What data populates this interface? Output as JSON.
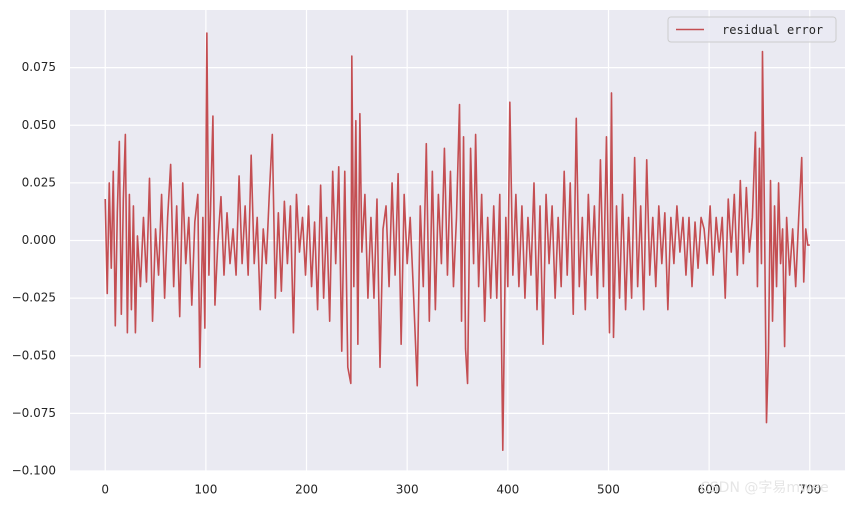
{
  "chart_data": {
    "type": "line",
    "legend": "upper right",
    "grid": true,
    "xlim": [
      -35,
      735
    ],
    "ylim": [
      -0.1,
      0.1
    ],
    "xticks": [
      0,
      100,
      200,
      300,
      400,
      500,
      600,
      700
    ],
    "yticks": [
      {
        "value": -0.1,
        "label": "−0.100"
      },
      {
        "value": -0.075,
        "label": "−0.075"
      },
      {
        "value": -0.05,
        "label": "−0.050"
      },
      {
        "value": -0.025,
        "label": "−0.025"
      },
      {
        "value": 0,
        "label": "0.000"
      },
      {
        "value": 0.025,
        "label": "0.025"
      },
      {
        "value": 0.05,
        "label": "0.050"
      },
      {
        "value": 0.075,
        "label": "0.075"
      }
    ],
    "annotation": "CSDN @字易mwee",
    "x": [
      0,
      2,
      4,
      6,
      8,
      10,
      12,
      14,
      16,
      18,
      20,
      22,
      24,
      26,
      28,
      30,
      32,
      35,
      38,
      41,
      44,
      47,
      50,
      53,
      56,
      59,
      62,
      65,
      68,
      71,
      74,
      77,
      80,
      83,
      86,
      89,
      92,
      94,
      97,
      99,
      101,
      103,
      105,
      107,
      109,
      112,
      115,
      118,
      121,
      124,
      127,
      130,
      133,
      136,
      139,
      142,
      145,
      148,
      151,
      154,
      157,
      160,
      163,
      166,
      169,
      172,
      175,
      178,
      181,
      184,
      187,
      190,
      193,
      196,
      199,
      202,
      205,
      208,
      211,
      214,
      217,
      220,
      223,
      226,
      229,
      232,
      235,
      238,
      241,
      244,
      245,
      247,
      249,
      251,
      253,
      255,
      258,
      261,
      264,
      267,
      270,
      273,
      276,
      279,
      282,
      285,
      288,
      291,
      294,
      297,
      300,
      303,
      306,
      310,
      313,
      316,
      319,
      322,
      325,
      328,
      331,
      334,
      337,
      340,
      343,
      346,
      349,
      352,
      354,
      356,
      358,
      360,
      363,
      366,
      368,
      371,
      374,
      377,
      380,
      383,
      386,
      389,
      392,
      395,
      398,
      400,
      402,
      405,
      408,
      411,
      414,
      417,
      420,
      423,
      426,
      429,
      432,
      435,
      438,
      441,
      444,
      447,
      450,
      453,
      456,
      459,
      462,
      465,
      468,
      471,
      474,
      477,
      480,
      483,
      486,
      489,
      492,
      495,
      498,
      501,
      503,
      505,
      508,
      511,
      514,
      517,
      520,
      523,
      526,
      529,
      532,
      535,
      538,
      541,
      544,
      547,
      550,
      553,
      556,
      559,
      562,
      565,
      568,
      571,
      574,
      577,
      580,
      583,
      586,
      589,
      592,
      595,
      598,
      601,
      604,
      607,
      610,
      613,
      616,
      619,
      622,
      625,
      628,
      631,
      634,
      637,
      640,
      643,
      646,
      648,
      650,
      652,
      653,
      655,
      657,
      659,
      661,
      663,
      665,
      667,
      669,
      671,
      673,
      675,
      677,
      680,
      683,
      686,
      689,
      692,
      694,
      696,
      698,
      700
    ],
    "series": [
      {
        "name": "residual error",
        "color": "#c44e52",
        "values": [
          0.018,
          -0.023,
          0.025,
          -0.012,
          0.03,
          -0.037,
          0.012,
          0.043,
          -0.032,
          0.018,
          0.046,
          -0.04,
          0.02,
          -0.03,
          0.015,
          -0.04,
          0.002,
          -0.02,
          0.01,
          -0.018,
          0.027,
          -0.035,
          0.005,
          -0.015,
          0.02,
          -0.025,
          0.01,
          0.033,
          -0.02,
          0.015,
          -0.033,
          0.025,
          -0.01,
          0.01,
          -0.028,
          0.008,
          0.02,
          -0.055,
          0.01,
          -0.038,
          0.09,
          -0.015,
          0.02,
          0.054,
          -0.028,
          0.0,
          0.019,
          -0.015,
          0.012,
          -0.01,
          0.005,
          -0.015,
          0.028,
          -0.01,
          0.015,
          -0.015,
          0.037,
          -0.01,
          0.01,
          -0.03,
          0.005,
          -0.01,
          0.02,
          0.046,
          -0.025,
          0.012,
          -0.022,
          0.017,
          -0.01,
          0.015,
          -0.04,
          0.02,
          -0.005,
          0.01,
          -0.015,
          0.015,
          -0.02,
          0.008,
          -0.03,
          0.024,
          -0.025,
          0.01,
          -0.035,
          0.03,
          -0.01,
          0.032,
          -0.048,
          0.03,
          -0.055,
          -0.062,
          0.08,
          -0.02,
          0.052,
          -0.045,
          0.055,
          -0.005,
          0.02,
          -0.025,
          0.01,
          -0.025,
          0.018,
          -0.055,
          0.005,
          0.015,
          -0.02,
          0.025,
          -0.015,
          0.029,
          -0.045,
          0.02,
          -0.01,
          0.01,
          -0.02,
          -0.063,
          0.015,
          -0.02,
          0.042,
          -0.035,
          0.03,
          -0.03,
          0.02,
          -0.01,
          0.04,
          -0.015,
          0.03,
          -0.02,
          0.01,
          0.059,
          -0.035,
          0.045,
          -0.047,
          -0.062,
          0.04,
          -0.01,
          0.046,
          -0.02,
          0.02,
          -0.035,
          0.01,
          -0.025,
          0.015,
          -0.025,
          0.02,
          -0.091,
          0.01,
          -0.02,
          0.06,
          -0.015,
          0.02,
          -0.02,
          0.015,
          -0.025,
          0.01,
          -0.015,
          0.025,
          -0.03,
          0.015,
          -0.045,
          0.02,
          -0.01,
          0.015,
          -0.025,
          0.01,
          -0.02,
          0.03,
          -0.015,
          0.025,
          -0.032,
          0.053,
          -0.02,
          0.01,
          -0.03,
          0.02,
          -0.015,
          0.015,
          -0.025,
          0.035,
          -0.02,
          0.045,
          -0.04,
          0.064,
          -0.042,
          0.015,
          -0.025,
          0.02,
          -0.03,
          0.01,
          -0.025,
          0.036,
          -0.02,
          0.015,
          -0.03,
          0.035,
          -0.015,
          0.01,
          -0.02,
          0.015,
          -0.01,
          0.012,
          -0.03,
          0.01,
          -0.01,
          0.015,
          -0.005,
          0.01,
          -0.015,
          0.01,
          -0.02,
          0.008,
          -0.012,
          0.01,
          0.005,
          -0.01,
          0.015,
          -0.015,
          0.01,
          -0.005,
          0.01,
          -0.025,
          0.018,
          -0.005,
          0.02,
          -0.015,
          0.026,
          -0.01,
          0.023,
          -0.005,
          0.01,
          0.047,
          -0.02,
          0.04,
          -0.01,
          0.082,
          0.01,
          -0.079,
          -0.048,
          0.026,
          -0.035,
          0.015,
          -0.02,
          0.025,
          -0.01,
          0.005,
          -0.046,
          0.01,
          -0.015,
          0.005,
          -0.02,
          0.01,
          0.036,
          -0.018,
          0.005,
          -0.002,
          -0.002
        ]
      }
    ]
  }
}
